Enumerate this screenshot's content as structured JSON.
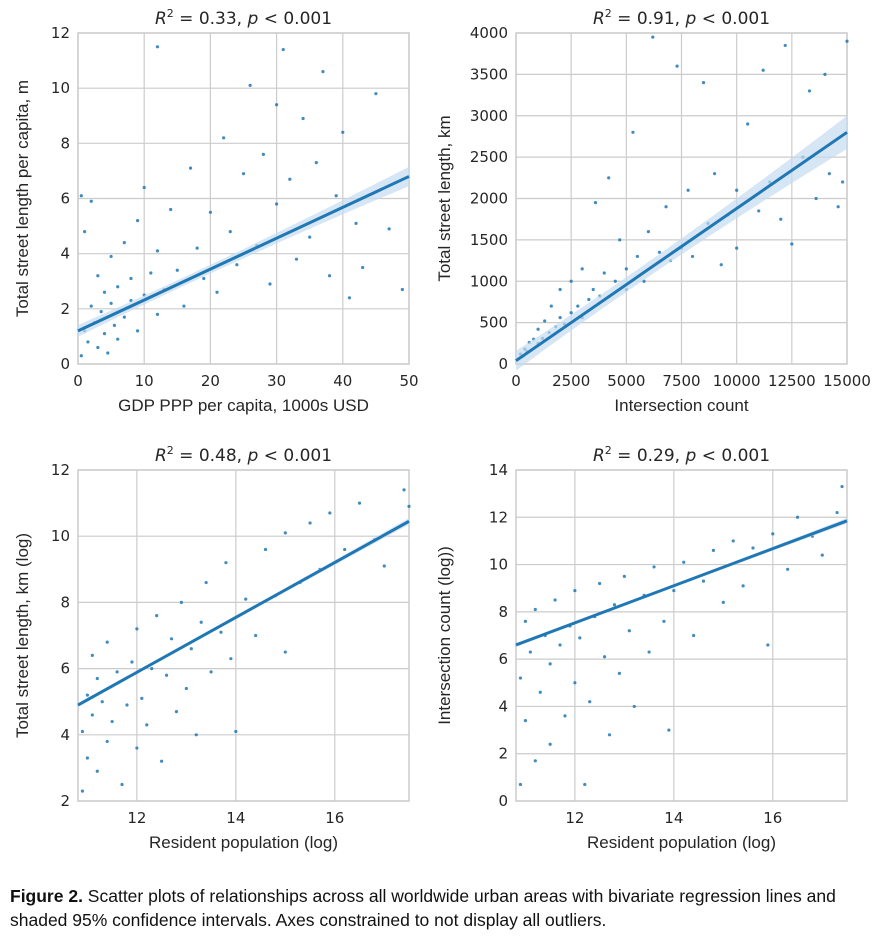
{
  "caption": {
    "label": "Figure 2.",
    "text": " Scatter plots of relationships across all worldwide urban areas with bivariate regression lines and shaded 95% confidence intervals. Axes constrained to not display all outliers."
  },
  "colors": {
    "points": "#1f77b4",
    "line": "#1f77b4",
    "ci": "#c6dbef",
    "grid": "#cccccc",
    "frame": "#cccccc"
  },
  "chart_data": [
    {
      "type": "scatter",
      "title": "R² = 0.33, p < 0.001",
      "xlabel": "GDP PPP per capita, 1000s USD",
      "ylabel": "Total street length per capita, m",
      "xlim": [
        0,
        50
      ],
      "ylim": [
        0,
        12
      ],
      "xticks": [
        0,
        10,
        20,
        30,
        40,
        50
      ],
      "yticks": [
        0,
        2,
        4,
        6,
        8,
        10,
        12
      ],
      "grid": true,
      "regression": {
        "x": [
          0,
          50
        ],
        "y": [
          1.2,
          6.8
        ],
        "ci_halfwidth_end": 0.35
      },
      "points": [
        [
          0.5,
          0.3
        ],
        [
          1,
          1.2
        ],
        [
          1.5,
          0.8
        ],
        [
          2,
          2.1
        ],
        [
          2.5,
          1.5
        ],
        [
          3,
          0.6
        ],
        [
          3,
          3.2
        ],
        [
          3.5,
          1.9
        ],
        [
          4,
          2.6
        ],
        [
          4,
          1.1
        ],
        [
          4.5,
          0.4
        ],
        [
          5,
          2.2
        ],
        [
          5,
          3.9
        ],
        [
          5.5,
          1.4
        ],
        [
          6,
          2.8
        ],
        [
          6,
          0.9
        ],
        [
          7,
          1.7
        ],
        [
          7,
          4.4
        ],
        [
          8,
          2.3
        ],
        [
          8,
          3.1
        ],
        [
          9,
          1.2
        ],
        [
          9,
          5.2
        ],
        [
          10,
          2.5
        ],
        [
          10,
          6.4
        ],
        [
          11,
          3.3
        ],
        [
          12,
          1.8
        ],
        [
          12,
          4.1
        ],
        [
          13,
          2.7
        ],
        [
          14,
          5.6
        ],
        [
          15,
          3.4
        ],
        [
          16,
          2.1
        ],
        [
          17,
          7.1
        ],
        [
          18,
          4.2
        ],
        [
          19,
          3.1
        ],
        [
          20,
          5.5
        ],
        [
          21,
          2.6
        ],
        [
          22,
          8.2
        ],
        [
          23,
          4.8
        ],
        [
          24,
          3.6
        ],
        [
          25,
          6.9
        ],
        [
          26,
          10.1
        ],
        [
          27,
          4.3
        ],
        [
          28,
          7.6
        ],
        [
          29,
          2.9
        ],
        [
          30,
          9.4
        ],
        [
          30,
          5.8
        ],
        [
          31,
          11.4
        ],
        [
          32,
          6.7
        ],
        [
          33,
          3.8
        ],
        [
          34,
          8.9
        ],
        [
          35,
          4.6
        ],
        [
          36,
          7.3
        ],
        [
          37,
          10.6
        ],
        [
          38,
          3.2
        ],
        [
          39,
          6.1
        ],
        [
          40,
          8.4
        ],
        [
          41,
          2.4
        ],
        [
          42,
          5.1
        ],
        [
          43,
          3.5
        ],
        [
          45,
          9.8
        ],
        [
          47,
          4.9
        ],
        [
          49,
          2.7
        ],
        [
          12,
          11.5
        ],
        [
          1,
          4.8
        ],
        [
          2,
          5.9
        ],
        [
          0.5,
          6.1
        ]
      ]
    },
    {
      "type": "scatter",
      "title": "R² = 0.91, p < 0.001",
      "xlabel": "Intersection count",
      "ylabel": "Total street length, km",
      "xlim": [
        0,
        15000
      ],
      "ylim": [
        0,
        4000
      ],
      "xticks": [
        0,
        2500,
        5000,
        7500,
        10000,
        12500,
        15000
      ],
      "yticks": [
        0,
        500,
        1000,
        1500,
        2000,
        2500,
        3000,
        3500,
        4000
      ],
      "grid": true,
      "regression": {
        "x": [
          0,
          15000
        ],
        "y": [
          40,
          2800
        ],
        "ci_halfwidth_end": 200
      },
      "points": [
        [
          100,
          60
        ],
        [
          200,
          120
        ],
        [
          300,
          90
        ],
        [
          400,
          180
        ],
        [
          500,
          150
        ],
        [
          600,
          260
        ],
        [
          700,
          170
        ],
        [
          800,
          300
        ],
        [
          1000,
          250
        ],
        [
          1000,
          420
        ],
        [
          1200,
          310
        ],
        [
          1300,
          520
        ],
        [
          1500,
          380
        ],
        [
          1600,
          700
        ],
        [
          1800,
          450
        ],
        [
          2000,
          560
        ],
        [
          2000,
          900
        ],
        [
          2200,
          480
        ],
        [
          2500,
          620
        ],
        [
          2500,
          1000
        ],
        [
          2800,
          700
        ],
        [
          3000,
          560
        ],
        [
          3000,
          1150
        ],
        [
          3300,
          780
        ],
        [
          3500,
          900
        ],
        [
          3600,
          1950
        ],
        [
          3800,
          820
        ],
        [
          4000,
          1100
        ],
        [
          4200,
          2250
        ],
        [
          4500,
          1000
        ],
        [
          4700,
          1500
        ],
        [
          5000,
          1150
        ],
        [
          5000,
          900
        ],
        [
          5300,
          2800
        ],
        [
          5500,
          1300
        ],
        [
          5800,
          1000
        ],
        [
          6000,
          1600
        ],
        [
          6200,
          3950
        ],
        [
          6500,
          1350
        ],
        [
          6800,
          1900
        ],
        [
          7000,
          1250
        ],
        [
          7300,
          3600
        ],
        [
          7500,
          1400
        ],
        [
          7800,
          2100
        ],
        [
          8000,
          1300
        ],
        [
          8500,
          3400
        ],
        [
          8700,
          1700
        ],
        [
          9000,
          2300
        ],
        [
          9300,
          1200
        ],
        [
          9600,
          1800
        ],
        [
          10000,
          2100
        ],
        [
          10000,
          1400
        ],
        [
          10500,
          2900
        ],
        [
          11000,
          1850
        ],
        [
          11200,
          3550
        ],
        [
          11500,
          2200
        ],
        [
          12000,
          1750
        ],
        [
          12200,
          3850
        ],
        [
          12500,
          1450
        ],
        [
          13000,
          2500
        ],
        [
          13300,
          3300
        ],
        [
          13600,
          2000
        ],
        [
          14000,
          3500
        ],
        [
          14200,
          2300
        ],
        [
          14600,
          1900
        ],
        [
          15000,
          3900
        ],
        [
          14800,
          2200
        ]
      ]
    },
    {
      "type": "scatter",
      "title": "R² = 0.48, p < 0.001",
      "xlabel": "Resident population (log)",
      "ylabel": "Total street length, km (log)",
      "xlim": [
        10.81,
        17.5
      ],
      "ylim": [
        2,
        12
      ],
      "xticks": [
        12,
        14,
        16
      ],
      "yticks": [
        2,
        4,
        6,
        8,
        10,
        12
      ],
      "grid": true,
      "regression": {
        "x": [
          10.81,
          17.5
        ],
        "y": [
          4.9,
          10.45
        ],
        "ci_halfwidth_end": 0.1
      },
      "points": [
        [
          10.9,
          2.3
        ],
        [
          10.9,
          4.1
        ],
        [
          11,
          5.2
        ],
        [
          11,
          3.3
        ],
        [
          11.1,
          6.4
        ],
        [
          11.1,
          4.6
        ],
        [
          11.2,
          5.7
        ],
        [
          11.2,
          2.9
        ],
        [
          11.3,
          5.0
        ],
        [
          11.4,
          3.8
        ],
        [
          11.4,
          6.8
        ],
        [
          11.5,
          4.4
        ],
        [
          11.6,
          5.9
        ],
        [
          11.7,
          2.5
        ],
        [
          11.8,
          4.9
        ],
        [
          11.9,
          6.2
        ],
        [
          12,
          3.6
        ],
        [
          12,
          7.2
        ],
        [
          12.1,
          5.1
        ],
        [
          12.2,
          4.3
        ],
        [
          12.3,
          6.0
        ],
        [
          12.4,
          7.6
        ],
        [
          12.5,
          3.2
        ],
        [
          12.6,
          5.8
        ],
        [
          12.7,
          6.9
        ],
        [
          12.8,
          4.7
        ],
        [
          12.9,
          8.0
        ],
        [
          13,
          5.4
        ],
        [
          13.1,
          6.6
        ],
        [
          13.2,
          4.0
        ],
        [
          13.3,
          7.4
        ],
        [
          13.4,
          8.6
        ],
        [
          13.5,
          5.9
        ],
        [
          13.7,
          7.1
        ],
        [
          13.8,
          9.2
        ],
        [
          13.9,
          6.3
        ],
        [
          14,
          4.1
        ],
        [
          14.2,
          8.1
        ],
        [
          14.4,
          7.0
        ],
        [
          14.6,
          9.6
        ],
        [
          14.8,
          8.2
        ],
        [
          15,
          10.1
        ],
        [
          15,
          6.5
        ],
        [
          15.3,
          8.6
        ],
        [
          15.5,
          10.4
        ],
        [
          15.7,
          9.0
        ],
        [
          15.9,
          10.7
        ],
        [
          16.2,
          9.6
        ],
        [
          16.5,
          11.0
        ],
        [
          16.8,
          9.9
        ],
        [
          17,
          9.1
        ],
        [
          17.4,
          11.4
        ],
        [
          17.5,
          10.9
        ]
      ]
    },
    {
      "type": "scatter",
      "title": "R² = 0.29, p < 0.001",
      "xlabel": "Resident population (log)",
      "ylabel": "Intersection count (log))",
      "xlim": [
        10.81,
        17.5
      ],
      "ylim": [
        0,
        14
      ],
      "xticks": [
        12,
        14,
        16
      ],
      "yticks": [
        0,
        2,
        4,
        6,
        8,
        10,
        12,
        14
      ],
      "grid": true,
      "regression": {
        "x": [
          10.81,
          17.5
        ],
        "y": [
          6.6,
          11.85
        ],
        "ci_halfwidth_end": 0.12
      },
      "points": [
        [
          10.9,
          0.7
        ],
        [
          10.9,
          5.2
        ],
        [
          11,
          7.6
        ],
        [
          11,
          3.4
        ],
        [
          11.1,
          6.3
        ],
        [
          11.2,
          1.7
        ],
        [
          11.2,
          8.1
        ],
        [
          11.3,
          4.6
        ],
        [
          11.4,
          7.0
        ],
        [
          11.5,
          2.4
        ],
        [
          11.5,
          5.8
        ],
        [
          11.6,
          8.5
        ],
        [
          11.7,
          6.6
        ],
        [
          11.8,
          3.6
        ],
        [
          11.9,
          7.4
        ],
        [
          12,
          5.0
        ],
        [
          12,
          8.9
        ],
        [
          12.1,
          6.9
        ],
        [
          12.2,
          0.7
        ],
        [
          12.3,
          4.2
        ],
        [
          12.4,
          7.8
        ],
        [
          12.5,
          9.2
        ],
        [
          12.6,
          6.1
        ],
        [
          12.7,
          2.8
        ],
        [
          12.8,
          8.3
        ],
        [
          12.9,
          5.4
        ],
        [
          13,
          9.5
        ],
        [
          13.1,
          7.2
        ],
        [
          13.2,
          4.0
        ],
        [
          13.4,
          8.7
        ],
        [
          13.5,
          6.3
        ],
        [
          13.6,
          9.9
        ],
        [
          13.8,
          7.6
        ],
        [
          13.9,
          3.0
        ],
        [
          14,
          8.9
        ],
        [
          14.2,
          10.1
        ],
        [
          14.4,
          7.0
        ],
        [
          14.6,
          9.3
        ],
        [
          14.8,
          10.6
        ],
        [
          15,
          8.4
        ],
        [
          15.2,
          11.0
        ],
        [
          15.4,
          9.1
        ],
        [
          15.6,
          10.7
        ],
        [
          15.9,
          6.6
        ],
        [
          16,
          11.3
        ],
        [
          16.3,
          9.8
        ],
        [
          16.5,
          12.0
        ],
        [
          16.8,
          11.2
        ],
        [
          17,
          10.4
        ],
        [
          17.4,
          13.3
        ],
        [
          17.3,
          12.2
        ]
      ]
    }
  ]
}
